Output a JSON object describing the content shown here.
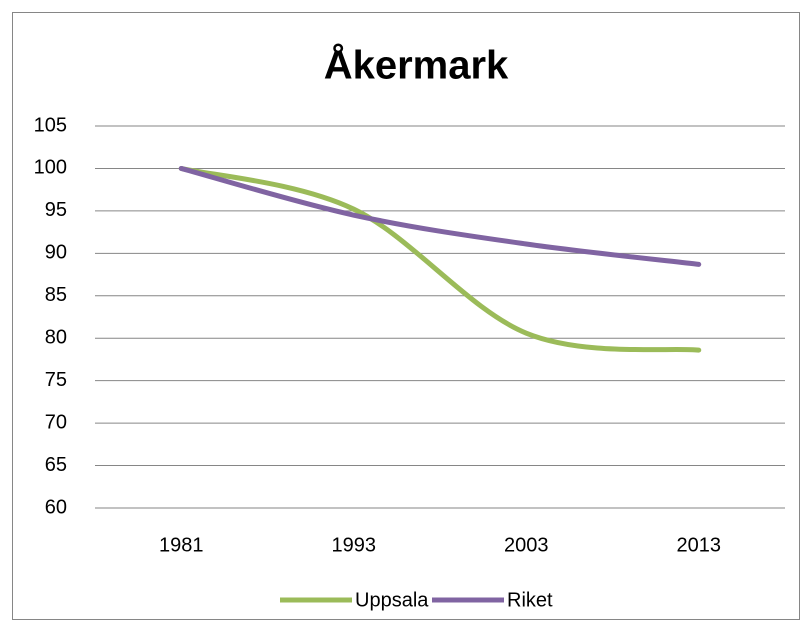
{
  "chart_data": {
    "type": "line",
    "title": "Åkermark",
    "categories": [
      "1981",
      "1993",
      "2003",
      "2013"
    ],
    "series": [
      {
        "name": "Uppsala",
        "color": "#9bbb59",
        "values": [
          100,
          95.2,
          80.6,
          78.6
        ]
      },
      {
        "name": "Riket",
        "color": "#8064a2",
        "values": [
          100,
          94.5,
          91.1,
          88.7
        ]
      }
    ],
    "ylim": [
      60,
      105
    ],
    "yticks": [
      60,
      65,
      70,
      75,
      80,
      85,
      90,
      95,
      100,
      105
    ],
    "grid": true,
    "smooth": true,
    "legend": "bottom"
  }
}
